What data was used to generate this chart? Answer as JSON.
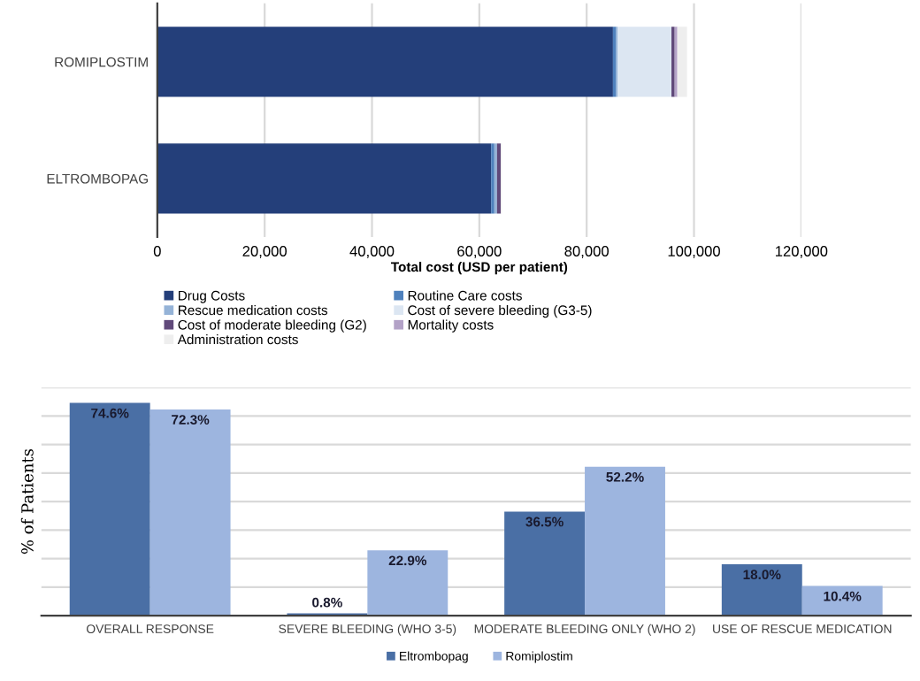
{
  "chart_data": [
    {
      "type": "bar",
      "orientation": "horizontal",
      "stacked": true,
      "categories": [
        "ROMIPLOSTIM",
        "ELTROMBOPAG"
      ],
      "xlabel": "Total cost (USD per patient)",
      "xlim": [
        0,
        120000
      ],
      "xticks": [
        {
          "value": 0,
          "label": "0"
        },
        {
          "value": 20000,
          "label": "20,000"
        },
        {
          "value": 40000,
          "label": "40,000"
        },
        {
          "value": 60000,
          "label": "60,000"
        },
        {
          "value": 80000,
          "label": "80,000"
        },
        {
          "value": 100000,
          "label": "100,000"
        },
        {
          "value": 120000,
          "label": "120,000"
        }
      ],
      "grid": "x",
      "legend": "bottom",
      "series": [
        {
          "name": "Drug Costs",
          "color": "#243f7a",
          "values": [
            84900,
            62200
          ]
        },
        {
          "name": "Routine Care costs",
          "color": "#4f81bd",
          "values": [
            600,
            600
          ]
        },
        {
          "name": "Rescue medication costs",
          "color": "#95b3d7",
          "values": [
            300,
            500
          ]
        },
        {
          "name": "Cost of severe bleeding (G3-5)",
          "color": "#dce6f2",
          "values": [
            10000,
            null
          ]
        },
        {
          "name": "Cost of moderate bleeding (G2)",
          "color": "#60497a",
          "values": [
            600,
            700
          ]
        },
        {
          "name": "Mortality costs",
          "color": "#b3a2c7",
          "values": [
            500,
            null
          ]
        },
        {
          "name": "Administration costs",
          "color": "#eeeeee",
          "values": [
            1800,
            200
          ]
        }
      ]
    },
    {
      "type": "bar",
      "categories": [
        "OVERALL RESPONSE",
        "SEVERE BLEEDING (WHO 3-5)",
        "MODERATE BLEEDING ONLY (WHO 2)",
        "USE OF RESCUE MEDICATION"
      ],
      "ylabel": "% of Patients",
      "ylim": [
        0,
        80
      ],
      "yticks": [
        {
          "value": 0,
          "label": null
        },
        {
          "value": 10,
          "label": null
        },
        {
          "value": 20,
          "label": null
        },
        {
          "value": 30,
          "label": null
        },
        {
          "value": 40,
          "label": null
        },
        {
          "value": 50,
          "label": null
        },
        {
          "value": 60,
          "label": null
        },
        {
          "value": 70,
          "label": null
        },
        {
          "value": 80,
          "label": null
        }
      ],
      "tick_labels": "x",
      "grid": "y",
      "legend": "bottom",
      "series": [
        {
          "name": "Eltrombopag",
          "color": "#4a6fa5",
          "values": [
            74.6,
            0.8,
            36.5,
            18.0
          ],
          "value_labels": [
            "74.6%",
            "0.8%",
            "36.5%",
            "18.0%"
          ]
        },
        {
          "name": "Romiplostim",
          "color": "#9db5df",
          "values": [
            72.3,
            22.9,
            52.2,
            10.4
          ],
          "value_labels": [
            "72.3%",
            "22.9%",
            "52.2%",
            "10.4%"
          ]
        }
      ]
    }
  ]
}
